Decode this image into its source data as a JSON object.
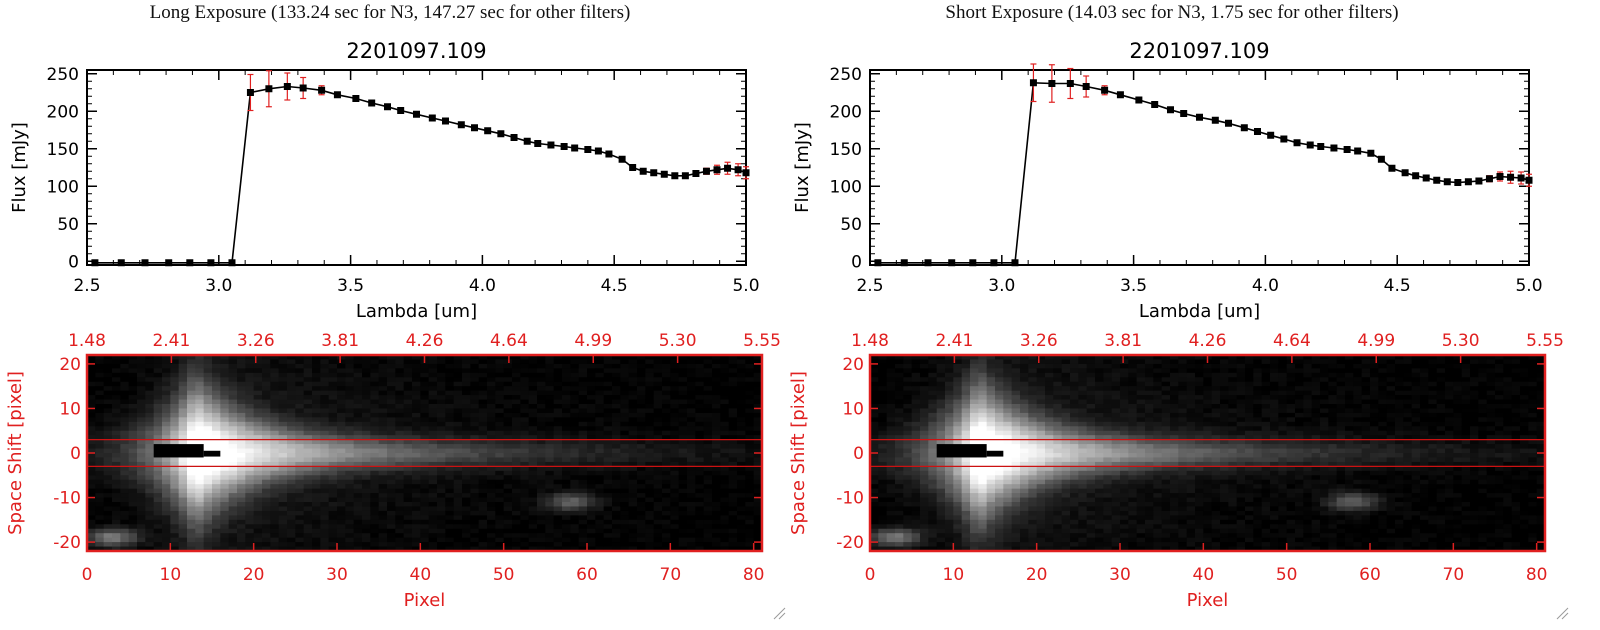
{
  "panels": [
    {
      "caption": "Long Exposure (133.24 sec for N3, 147.27 sec for other filters)"
    },
    {
      "caption": "Short Exposure (14.03 sec for N3, 1.75 sec for other filters)"
    }
  ],
  "chart_data": [
    {
      "type": "line",
      "title": "2201097.109",
      "xlabel": "Lambda [um]",
      "ylabel": "Flux [mJy]",
      "xlim": [
        2.5,
        5.0
      ],
      "ylim": [
        -5,
        255
      ],
      "xticks": [
        "2.5",
        "3.0",
        "3.5",
        "4.0",
        "4.5",
        "5.0"
      ],
      "yticks": [
        "0",
        "50",
        "100",
        "150",
        "200",
        "250"
      ],
      "colors": {
        "line": "#000000",
        "marker": "#000000",
        "errorbar": "#e02020"
      },
      "series": [
        {
          "x": [
            2.53,
            2.63,
            2.72,
            2.81,
            2.89,
            2.97,
            3.05,
            3.12,
            3.19,
            3.26,
            3.32,
            3.39,
            3.45,
            3.52,
            3.58,
            3.64,
            3.69,
            3.75,
            3.81,
            3.86,
            3.92,
            3.97,
            4.02,
            4.07,
            4.12,
            4.17,
            4.21,
            4.26,
            4.31,
            4.35,
            4.4,
            4.44,
            4.48,
            4.53,
            4.57,
            4.61,
            4.65,
            4.69,
            4.73,
            4.77,
            4.81,
            4.85,
            4.89,
            4.93,
            4.97,
            5.0
          ],
          "y": [
            -2,
            -2,
            -2,
            -2,
            -2,
            -2,
            -2,
            225,
            230,
            233,
            231,
            228,
            222,
            217,
            211,
            206,
            201,
            196,
            191,
            187,
            182,
            178,
            174,
            170,
            165,
            160,
            157,
            155,
            153,
            151,
            149,
            147,
            143,
            136,
            125,
            120,
            118,
            116,
            114,
            114,
            117,
            120,
            122,
            124,
            122,
            118
          ],
          "err": [
            0,
            0,
            0,
            0,
            0,
            0,
            0,
            24,
            24,
            18,
            14,
            6,
            3,
            3,
            3,
            3,
            3,
            3,
            3,
            3,
            3,
            3,
            3,
            3,
            3,
            3,
            3,
            3,
            3,
            3,
            3,
            3,
            3,
            3,
            3,
            3,
            3,
            3,
            3,
            3,
            3,
            4,
            6,
            8,
            8,
            8
          ]
        }
      ]
    },
    {
      "type": "heatmap",
      "xlabel": "Pixel",
      "ylabel": "Space Shift [pixel]",
      "xlim": [
        0,
        81
      ],
      "ylim": [
        -22,
        22
      ],
      "xticks": [
        "0",
        "10",
        "20",
        "30",
        "40",
        "50",
        "60",
        "70",
        "80"
      ],
      "yticks": [
        "-20",
        "-10",
        "0",
        "10",
        "20"
      ],
      "top_axis_ticks": [
        "1.48",
        "2.41",
        "3.26",
        "3.81",
        "4.26",
        "4.64",
        "4.99",
        "5.30",
        "5.55"
      ],
      "aperture_lines_y": [
        3,
        -3
      ],
      "colors": {
        "axis": "#e02020",
        "aperture": "#cc1111",
        "colormap": "gray"
      },
      "source": {
        "peak_x": 13,
        "peak_y": 0
      },
      "secondary_sources": [
        {
          "x": 58,
          "y": -11,
          "level": 0.35
        },
        {
          "x": 3,
          "y": -19,
          "level": 0.45
        }
      ],
      "saturated_mask": [
        {
          "x0": 8,
          "x1": 14,
          "y0": -1,
          "y1": 2
        },
        {
          "x0": 14,
          "x1": 16,
          "y0": -0.8,
          "y1": 0.5
        }
      ]
    },
    {
      "type": "line",
      "title": "2201097.109",
      "xlabel": "Lambda [um]",
      "ylabel": "Flux [mJy]",
      "xlim": [
        2.5,
        5.0
      ],
      "ylim": [
        -5,
        255
      ],
      "xticks": [
        "2.5",
        "3.0",
        "3.5",
        "4.0",
        "4.5",
        "5.0"
      ],
      "yticks": [
        "0",
        "50",
        "100",
        "150",
        "200",
        "250"
      ],
      "colors": {
        "line": "#000000",
        "marker": "#000000",
        "errorbar": "#e02020"
      },
      "series": [
        {
          "x": [
            2.53,
            2.63,
            2.72,
            2.81,
            2.89,
            2.97,
            3.05,
            3.12,
            3.19,
            3.26,
            3.32,
            3.39,
            3.45,
            3.52,
            3.58,
            3.64,
            3.69,
            3.75,
            3.81,
            3.86,
            3.92,
            3.97,
            4.02,
            4.07,
            4.12,
            4.17,
            4.21,
            4.26,
            4.31,
            4.35,
            4.4,
            4.44,
            4.48,
            4.53,
            4.57,
            4.61,
            4.65,
            4.69,
            4.73,
            4.77,
            4.81,
            4.85,
            4.89,
            4.93,
            4.97,
            5.0
          ],
          "y": [
            -2,
            -2,
            -2,
            -2,
            -2,
            -2,
            -2,
            238,
            237,
            237,
            233,
            228,
            222,
            215,
            209,
            202,
            197,
            192,
            188,
            184,
            178,
            173,
            168,
            163,
            158,
            155,
            153,
            151,
            149,
            147,
            144,
            136,
            124,
            118,
            114,
            111,
            108,
            106,
            105,
            106,
            107,
            110,
            113,
            112,
            111,
            108
          ],
          "err": [
            0,
            0,
            0,
            0,
            0,
            0,
            0,
            25,
            25,
            20,
            14,
            6,
            3,
            3,
            3,
            3,
            3,
            3,
            3,
            3,
            3,
            3,
            3,
            3,
            3,
            3,
            3,
            3,
            3,
            3,
            3,
            3,
            3,
            3,
            3,
            3,
            3,
            3,
            3,
            3,
            3,
            4,
            6,
            8,
            8,
            8
          ]
        }
      ]
    },
    {
      "type": "heatmap",
      "xlabel": "Pixel",
      "ylabel": "Space Shift [pixel]",
      "xlim": [
        0,
        81
      ],
      "ylim": [
        -22,
        22
      ],
      "xticks": [
        "0",
        "10",
        "20",
        "30",
        "40",
        "50",
        "60",
        "70",
        "80"
      ],
      "yticks": [
        "-20",
        "-10",
        "0",
        "10",
        "20"
      ],
      "top_axis_ticks": [
        "1.48",
        "2.41",
        "3.26",
        "3.81",
        "4.26",
        "4.64",
        "4.99",
        "5.30",
        "5.55"
      ],
      "aperture_lines_y": [
        3,
        -3
      ],
      "colors": {
        "axis": "#e02020",
        "aperture": "#cc1111",
        "colormap": "gray"
      },
      "source": {
        "peak_x": 13,
        "peak_y": 0
      },
      "secondary_sources": [
        {
          "x": 58,
          "y": -11,
          "level": 0.35
        },
        {
          "x": 3,
          "y": -19,
          "level": 0.45
        }
      ],
      "saturated_mask": [
        {
          "x0": 8,
          "x1": 14,
          "y0": -1,
          "y1": 2
        },
        {
          "x0": 14,
          "x1": 16,
          "y0": -0.8,
          "y1": 0.5
        }
      ]
    }
  ]
}
